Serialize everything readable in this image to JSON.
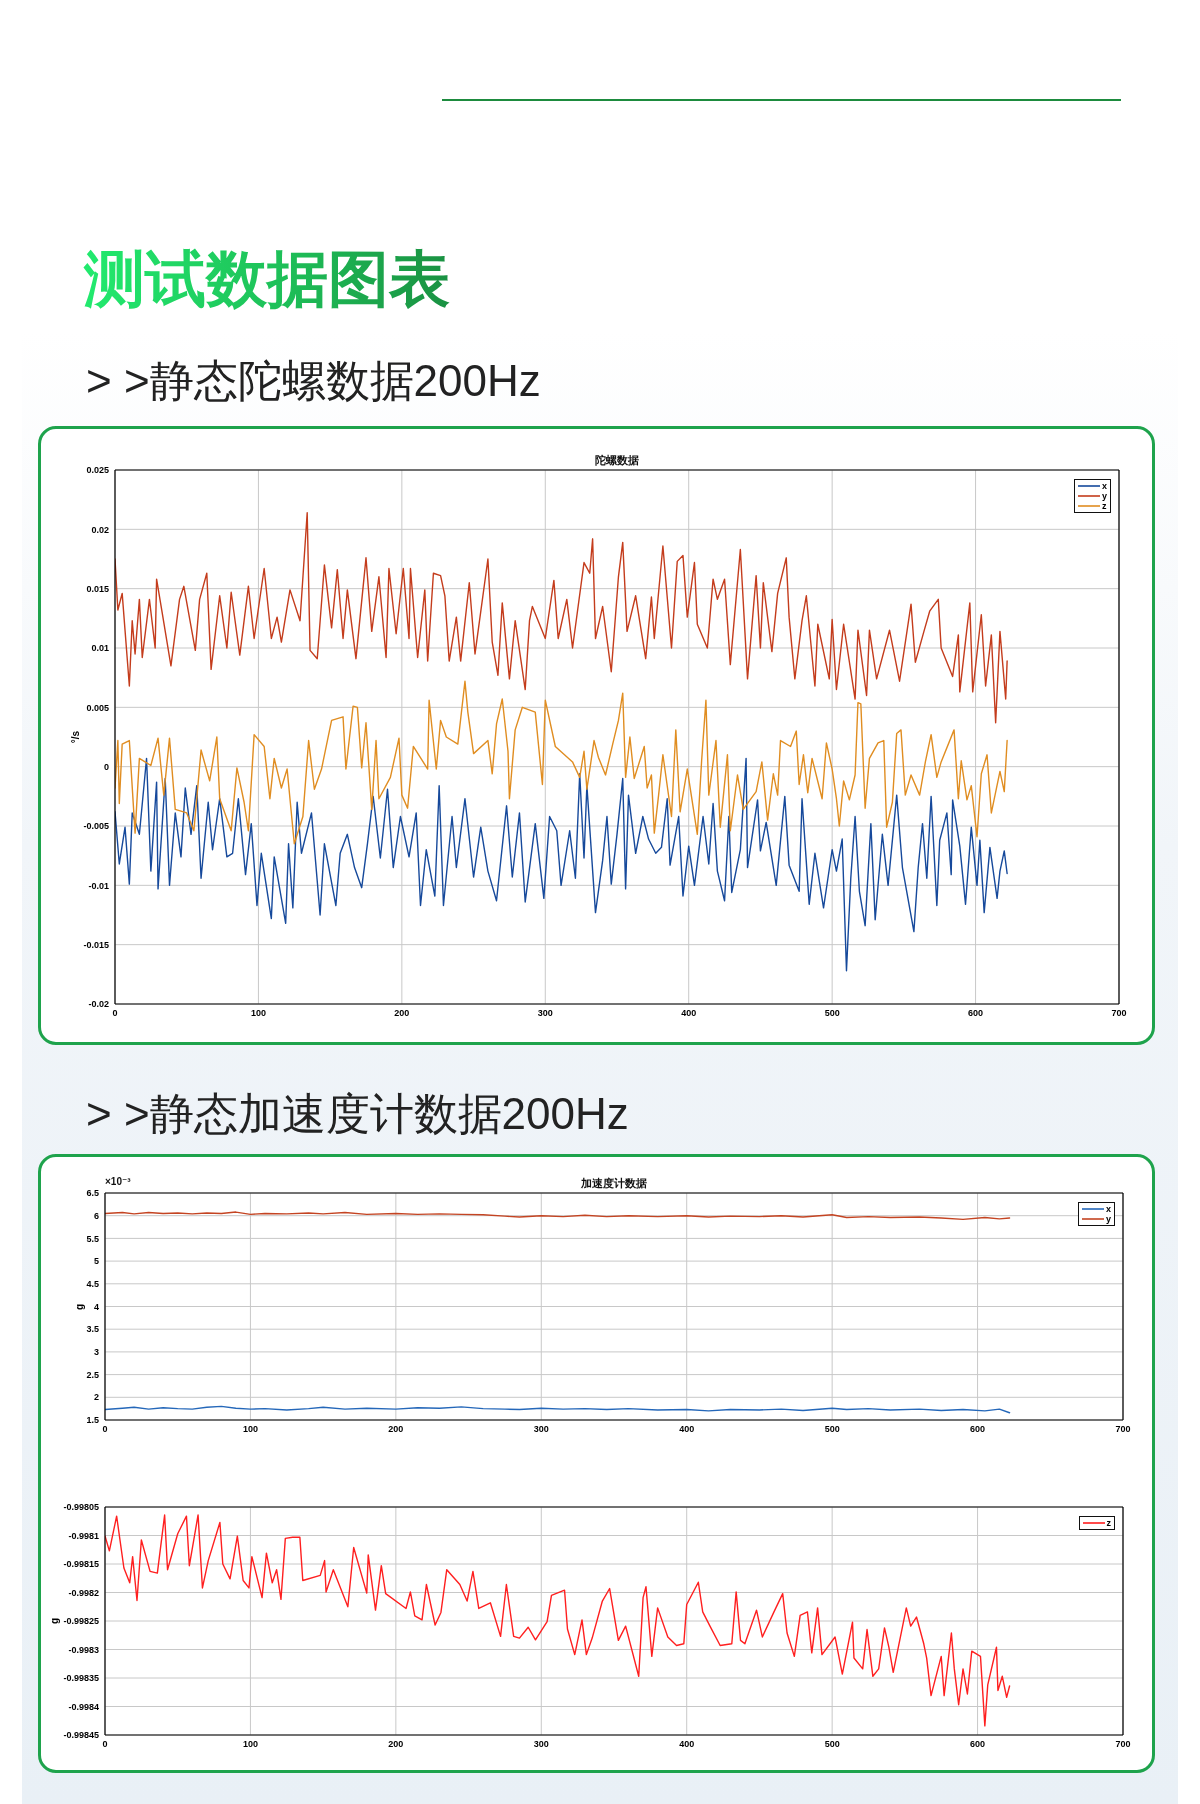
{
  "chart_data": [
    {
      "type": "line",
      "title": "陀螺数据",
      "subtitle": "> >静态陀螺数据200Hz",
      "annotations": [
        "测试数据图表"
      ],
      "ylabel": "°/s",
      "xlim": [
        0,
        700
      ],
      "xticks": [
        0,
        100,
        200,
        300,
        400,
        500,
        600,
        700
      ],
      "ylim": [
        -0.02,
        0.025
      ],
      "yticks": [
        -0.02,
        -0.015,
        -0.01,
        -0.005,
        0,
        0.005,
        0.01,
        0.015,
        0.02,
        0.025
      ],
      "grid": true,
      "legend": "top right",
      "series": [
        {
          "name": "x",
          "color": "#16499b",
          "x": [
            0,
            3,
            7,
            10,
            12,
            17,
            22,
            25,
            29,
            30,
            35,
            38,
            42,
            46,
            49,
            53,
            57,
            60,
            65,
            68,
            73,
            78,
            82,
            86,
            91,
            95,
            99,
            102,
            109,
            111,
            119,
            121,
            124,
            127,
            130,
            137,
            143,
            146,
            154,
            157,
            162,
            167,
            172,
            176,
            180,
            185,
            190,
            194,
            199,
            205,
            210,
            213,
            217,
            223,
            226,
            229,
            235,
            238,
            244,
            250,
            255,
            260,
            266,
            273,
            277,
            282,
            286,
            293,
            299,
            303,
            308,
            311,
            317,
            321,
            324,
            327,
            329,
            335,
            340,
            343,
            346,
            350,
            354,
            356,
            358,
            363,
            368,
            372,
            377,
            381,
            385,
            387,
            393,
            396,
            400,
            404,
            410,
            414,
            417,
            420,
            425,
            428,
            430,
            436,
            440,
            441,
            448,
            450,
            454,
            461,
            467,
            470,
            477,
            479,
            484,
            488,
            494,
            500,
            503,
            507,
            510,
            513,
            516,
            519,
            523,
            527,
            530,
            535,
            539,
            545,
            549,
            557,
            560,
            563,
            566,
            569,
            573,
            575,
            580,
            583,
            584,
            589,
            593,
            597,
            601,
            603,
            606,
            610,
            615,
            617,
            620,
            622
          ],
          "values": [
            -0.0038,
            -0.0082,
            -0.0051,
            -0.0099,
            -0.0039,
            -0.0057,
            0.0007,
            -0.0088,
            -0.0013,
            -0.0103,
            -0.001,
            -0.01,
            -0.0039,
            -0.0076,
            -0.0018,
            -0.0057,
            -0.0016,
            -0.0094,
            -0.003,
            -0.007,
            -0.0027,
            -0.0076,
            -0.0073,
            -0.0027,
            -0.0091,
            -0.0048,
            -0.0117,
            -0.0073,
            -0.0128,
            -0.0076,
            -0.0132,
            -0.0065,
            -0.0119,
            -0.003,
            -0.0073,
            -0.0039,
            -0.0125,
            -0.0065,
            -0.0117,
            -0.0073,
            -0.0057,
            -0.0085,
            -0.0102,
            -0.0065,
            -0.0025,
            -0.0077,
            -0.0019,
            -0.0085,
            -0.0042,
            -0.0076,
            -0.0039,
            -0.0117,
            -0.007,
            -0.0109,
            -0.0016,
            -0.0117,
            -0.0042,
            -0.0085,
            -0.0027,
            -0.0093,
            -0.0051,
            -0.0088,
            -0.0113,
            -0.0033,
            -0.0093,
            -0.0039,
            -0.0114,
            -0.0048,
            -0.0111,
            -0.0042,
            -0.0054,
            -0.01,
            -0.0054,
            -0.0094,
            -0.0006,
            -0.0077,
            -0.0016,
            -0.0123,
            -0.0079,
            -0.0042,
            -0.0099,
            -0.0057,
            -0.001,
            -0.0103,
            -0.0024,
            -0.0073,
            -0.0042,
            -0.0061,
            -0.0073,
            -0.0068,
            -0.0027,
            -0.0083,
            -0.0042,
            -0.0109,
            -0.0067,
            -0.01,
            -0.0042,
            -0.0082,
            -0.0031,
            -0.0088,
            -0.0113,
            -0.0042,
            -0.0106,
            -0.007,
            0.0007,
            -0.0085,
            -0.0028,
            -0.0071,
            -0.0047,
            -0.01,
            -0.0025,
            -0.0083,
            -0.0105,
            -0.0027,
            -0.0116,
            -0.0073,
            -0.0119,
            -0.007,
            -0.0088,
            -0.0061,
            -0.0172,
            -0.0094,
            -0.0042,
            -0.0105,
            -0.0134,
            -0.0048,
            -0.0129,
            -0.0057,
            -0.01,
            -0.0024,
            -0.0085,
            -0.0139,
            -0.0085,
            -0.0048,
            -0.0094,
            -0.0025,
            -0.0117,
            -0.0062,
            -0.0039,
            -0.0091,
            -0.0028,
            -0.0067,
            -0.0116,
            -0.0051,
            -0.01,
            -0.0062,
            -0.0123,
            -0.0068,
            -0.0111,
            -0.0088,
            -0.0071,
            -0.009
          ]
        },
        {
          "name": "y",
          "color": "#c43c1c",
          "x": [
            0,
            2,
            5,
            10,
            12,
            14,
            17,
            19,
            24,
            28,
            29,
            33,
            39,
            45,
            48,
            56,
            59,
            64,
            67,
            73,
            78,
            81,
            87,
            93,
            97,
            104,
            109,
            113,
            116,
            122,
            129,
            134,
            136,
            141,
            146,
            151,
            155,
            159,
            162,
            168,
            175,
            179,
            184,
            189,
            191,
            196,
            201,
            205,
            206,
            211,
            216,
            218,
            222,
            227,
            230,
            233,
            238,
            241,
            247,
            251,
            260,
            263,
            267,
            270,
            275,
            279,
            286,
            289,
            291,
            300,
            306,
            309,
            315,
            319,
            327,
            331,
            333,
            335,
            340,
            346,
            351,
            354,
            357,
            363,
            370,
            374,
            376,
            382,
            388,
            392,
            396,
            399,
            404,
            406,
            413,
            417,
            420,
            425,
            429,
            436,
            441,
            447,
            450,
            452,
            458,
            462,
            468,
            470,
            474,
            479,
            482,
            488,
            490,
            498,
            500,
            503,
            508,
            516,
            518,
            524,
            526,
            531,
            540,
            547,
            555,
            558,
            564,
            568,
            574,
            576,
            584,
            588,
            589,
            596,
            598,
            604,
            607,
            611,
            614,
            617,
            621,
            622
          ],
          "values": [
            0.0175,
            0.0132,
            0.0146,
            0.0068,
            0.0123,
            0.0095,
            0.0141,
            0.0092,
            0.0141,
            0.01,
            0.0158,
            0.0129,
            0.0085,
            0.0141,
            0.0152,
            0.0098,
            0.0141,
            0.0163,
            0.0082,
            0.0144,
            0.01,
            0.0147,
            0.0094,
            0.0152,
            0.0108,
            0.0167,
            0.0108,
            0.0126,
            0.0105,
            0.0149,
            0.0123,
            0.0214,
            0.0098,
            0.0091,
            0.017,
            0.0117,
            0.0166,
            0.0108,
            0.0149,
            0.0091,
            0.0176,
            0.0114,
            0.016,
            0.0092,
            0.0167,
            0.0112,
            0.0167,
            0.0108,
            0.0167,
            0.0092,
            0.0149,
            0.0089,
            0.0163,
            0.0161,
            0.0144,
            0.0089,
            0.0126,
            0.0089,
            0.0155,
            0.0095,
            0.0175,
            0.0105,
            0.0077,
            0.0138,
            0.0074,
            0.0123,
            0.0065,
            0.0123,
            0.0135,
            0.0108,
            0.0157,
            0.0108,
            0.0141,
            0.01,
            0.0172,
            0.0163,
            0.0192,
            0.0108,
            0.0135,
            0.008,
            0.016,
            0.0189,
            0.0114,
            0.0144,
            0.0091,
            0.0143,
            0.0108,
            0.0186,
            0.01,
            0.0173,
            0.0178,
            0.0126,
            0.0172,
            0.012,
            0.01,
            0.0158,
            0.0141,
            0.0158,
            0.0086,
            0.0183,
            0.0074,
            0.0161,
            0.01,
            0.0155,
            0.0097,
            0.0146,
            0.0176,
            0.0126,
            0.0074,
            0.0123,
            0.0144,
            0.0068,
            0.012,
            0.0074,
            0.0124,
            0.0065,
            0.012,
            0.0057,
            0.0115,
            0.006,
            0.0115,
            0.0074,
            0.0115,
            0.0072,
            0.0137,
            0.0088,
            0.0114,
            0.0131,
            0.0141,
            0.01,
            0.0076,
            0.0111,
            0.0063,
            0.0138,
            0.0063,
            0.0128,
            0.0068,
            0.0111,
            0.0037,
            0.0114,
            0.0057,
            0.0089
          ]
        },
        {
          "name": "z",
          "color": "#e08d21",
          "x": [
            0,
            2,
            3,
            5,
            10,
            14,
            17,
            25,
            30,
            34,
            38,
            42,
            50,
            55,
            60,
            66,
            71,
            73,
            81,
            85,
            90,
            93,
            97,
            104,
            108,
            111,
            116,
            120,
            125,
            131,
            135,
            139,
            144,
            151,
            159,
            161,
            166,
            169,
            172,
            175,
            179,
            182,
            184,
            192,
            198,
            200,
            204,
            208,
            218,
            219,
            224,
            227,
            231,
            239,
            244,
            246,
            250,
            260,
            263,
            266,
            270,
            274,
            275,
            279,
            284,
            293,
            298,
            300,
            307,
            319,
            324,
            327,
            329,
            334,
            337,
            342,
            347,
            351,
            354,
            356,
            359,
            362,
            369,
            371,
            374,
            376,
            379,
            382,
            388,
            391,
            394,
            399,
            406,
            409,
            412,
            414,
            419,
            422,
            427,
            429,
            434,
            438,
            447,
            451,
            455,
            459,
            462,
            464,
            471,
            475,
            477,
            480,
            483,
            486,
            493,
            496,
            500,
            503,
            505,
            508,
            512,
            516,
            518,
            520,
            523,
            526,
            532,
            536,
            538,
            542,
            545,
            548,
            551,
            555,
            561,
            565,
            569,
            573,
            576,
            585,
            588,
            590,
            594,
            597,
            601,
            604,
            608,
            611,
            617,
            620,
            622
          ],
          "values": [
            -0.0018,
            0.0022,
            -0.0031,
            0.0019,
            0.0022,
            -0.0056,
            0.0007,
            0.0001,
            0.0024,
            -0.0024,
            0.0024,
            -0.0036,
            -0.0039,
            -0.0054,
            0.0014,
            -0.0012,
            0.0025,
            -0.0027,
            -0.0054,
            -0.0001,
            -0.003,
            -0.0054,
            0.0027,
            0.0017,
            -0.0027,
            0.0007,
            -0.0018,
            -0.0002,
            -0.0065,
            -0.0042,
            0.0022,
            -0.0019,
            -0.0002,
            0.0039,
            0.0042,
            -0.0002,
            0.0051,
            0.005,
            -0.0001,
            0.0037,
            -0.0036,
            0.0022,
            -0.0027,
            -0.0009,
            0.0024,
            -0.0024,
            -0.0035,
            0.0017,
            -0.0002,
            0.0056,
            -0.0002,
            0.0039,
            0.0025,
            0.0019,
            0.0072,
            0.0046,
            0.0011,
            0.0022,
            -0.0006,
            0.0036,
            0.0057,
            0.0013,
            -0.0027,
            0.0031,
            0.005,
            0.0046,
            -0.0015,
            0.0056,
            0.0017,
            0.0004,
            -0.0009,
            0.0013,
            -0.0019,
            0.0022,
            0.0008,
            -0.0007,
            0.0019,
            0.0039,
            0.0062,
            -0.0009,
            0.0025,
            -0.001,
            0.0017,
            -0.0018,
            -0.0007,
            -0.0056,
            -0.0024,
            0.001,
            -0.0042,
            0.0031,
            -0.0038,
            -0.0002,
            -0.0057,
            0.0005,
            0.0056,
            -0.0024,
            0.0022,
            -0.0051,
            0.001,
            -0.0054,
            -0.0007,
            -0.0036,
            -0.0021,
            0.0004,
            -0.0045,
            -0.0006,
            -0.0024,
            0.0022,
            0.0017,
            0.003,
            -0.0015,
            0.001,
            -0.0022,
            0.0007,
            -0.0027,
            0.002,
            -0.0002,
            -0.0027,
            -0.005,
            -0.0012,
            -0.0028,
            -0.0007,
            0.0054,
            0.0053,
            -0.0035,
            0.0007,
            0.002,
            0.0022,
            -0.0051,
            -0.003,
            0.0028,
            0.0031,
            -0.0024,
            -0.0007,
            -0.0024,
            0.0004,
            0.0027,
            -0.0009,
            0.0004,
            0.0031,
            -0.0027,
            0.0005,
            -0.0028,
            -0.0016,
            -0.0059,
            -0.0006,
            0.001,
            -0.0039,
            -0.0004,
            -0.0021,
            0.0022
          ]
        }
      ]
    },
    {
      "type": "line",
      "title": "加速度计数据",
      "subtitle": "> >静态加速度计数据200Hz",
      "annotations": [
        "×10⁻³"
      ],
      "ylabel": "g",
      "xlim": [
        0,
        700
      ],
      "xticks": [
        0,
        100,
        200,
        300,
        400,
        500,
        600,
        700
      ],
      "ylim": [
        1.5,
        6.5
      ],
      "yticks": [
        1.5,
        2,
        2.5,
        3,
        3.5,
        4,
        4.5,
        5,
        5.5,
        6,
        6.5
      ],
      "grid": true,
      "legend": "top right",
      "series": [
        {
          "name": "x",
          "color": "#2467b9",
          "x": [
            0,
            12,
            20,
            30,
            40,
            50,
            60,
            70,
            80,
            90,
            100,
            110,
            125,
            140,
            150,
            165,
            180,
            200,
            215,
            230,
            245,
            260,
            275,
            285,
            300,
            315,
            330,
            345,
            360,
            380,
            400,
            415,
            430,
            450,
            465,
            480,
            500,
            510,
            525,
            540,
            560,
            575,
            590,
            605,
            615,
            622
          ],
          "values": [
            1.73,
            1.76,
            1.78,
            1.74,
            1.77,
            1.75,
            1.74,
            1.78,
            1.8,
            1.76,
            1.74,
            1.75,
            1.72,
            1.75,
            1.78,
            1.74,
            1.76,
            1.74,
            1.77,
            1.76,
            1.79,
            1.75,
            1.74,
            1.73,
            1.76,
            1.74,
            1.75,
            1.73,
            1.75,
            1.72,
            1.73,
            1.7,
            1.73,
            1.72,
            1.74,
            1.71,
            1.76,
            1.73,
            1.75,
            1.72,
            1.74,
            1.71,
            1.73,
            1.7,
            1.74,
            1.66
          ]
        },
        {
          "name": "y",
          "color": "#c44422",
          "x": [
            0,
            12,
            20,
            30,
            40,
            50,
            60,
            70,
            80,
            90,
            100,
            110,
            125,
            140,
            150,
            165,
            180,
            200,
            215,
            230,
            245,
            260,
            275,
            285,
            300,
            315,
            330,
            345,
            360,
            380,
            400,
            415,
            430,
            450,
            465,
            480,
            500,
            510,
            525,
            540,
            560,
            575,
            590,
            605,
            615,
            622
          ],
          "values": [
            6.05,
            6.07,
            6.04,
            6.07,
            6.05,
            6.06,
            6.04,
            6.06,
            6.05,
            6.08,
            6.03,
            6.05,
            6.04,
            6.06,
            6.04,
            6.07,
            6.03,
            6.05,
            6.03,
            6.04,
            6.03,
            6.02,
            5.99,
            5.97,
            6,
            5.98,
            6.01,
            5.98,
            6,
            5.98,
            6,
            5.97,
            5.99,
            5.98,
            6,
            5.97,
            6.02,
            5.96,
            5.98,
            5.96,
            5.97,
            5.95,
            5.92,
            5.96,
            5.93,
            5.95
          ]
        }
      ]
    },
    {
      "type": "line",
      "ylabel": "g",
      "xlim": [
        0,
        700
      ],
      "xticks": [
        0,
        100,
        200,
        300,
        400,
        500,
        600,
        700
      ],
      "ylim": [
        -0.99845,
        -0.99805
      ],
      "yticks": [
        -0.99845,
        -0.9984,
        -0.99835,
        -0.9983,
        -0.99825,
        -0.9982,
        -0.99815,
        -0.9981,
        -0.99805
      ],
      "grid": true,
      "legend": "top right",
      "series": [
        {
          "name": "z",
          "color": "#ff1f1f",
          "x": [
            0,
            3,
            8,
            13,
            17,
            19,
            22,
            25,
            31,
            36,
            41,
            43,
            50,
            56,
            58,
            64,
            67,
            71,
            79,
            81,
            86,
            91,
            95,
            99,
            101,
            108,
            111,
            115,
            118,
            121,
            124,
            129,
            134,
            136,
            148,
            151,
            152,
            157,
            167,
            171,
            180,
            181,
            186,
            190,
            193,
            207,
            210,
            213,
            218,
            221,
            227,
            231,
            235,
            244,
            249,
            253,
            257,
            265,
            272,
            276,
            281,
            285,
            291,
            296,
            304,
            307,
            316,
            318,
            323,
            328,
            331,
            335,
            342,
            347,
            353,
            358,
            367,
            370,
            372,
            376,
            380,
            387,
            393,
            398,
            400,
            408,
            411,
            416,
            423,
            431,
            434,
            437,
            440,
            448,
            452,
            460,
            466,
            469,
            474,
            478,
            483,
            486,
            490,
            493,
            502,
            507,
            514,
            515,
            521,
            524,
            528,
            532,
            536,
            539,
            542,
            551,
            554,
            558,
            563,
            565,
            568,
            575,
            577,
            582,
            584,
            587,
            590,
            593,
            596,
            602,
            605,
            607,
            613,
            614,
            617,
            620,
            622
          ],
          "values": [
            -0.998101,
            -0.998127,
            -0.998066,
            -0.998157,
            -0.998183,
            -0.998137,
            -0.998214,
            -0.998108,
            -0.998163,
            -0.998166,
            -0.998064,
            -0.99816,
            -0.998097,
            -0.998066,
            -0.998153,
            -0.998064,
            -0.998192,
            -0.998144,
            -0.998077,
            -0.99815,
            -0.998176,
            -0.998101,
            -0.998179,
            -0.998192,
            -0.998137,
            -0.998209,
            -0.998131,
            -0.998183,
            -0.99816,
            -0.998212,
            -0.998105,
            -0.998103,
            -0.998103,
            -0.998179,
            -0.99817,
            -0.998144,
            -0.998199,
            -0.99816,
            -0.998225,
            -0.998121,
            -0.998201,
            -0.998134,
            -0.998231,
            -0.998153,
            -0.998202,
            -0.998228,
            -0.998199,
            -0.998241,
            -0.998248,
            -0.998186,
            -0.998257,
            -0.998235,
            -0.99816,
            -0.998186,
            -0.998215,
            -0.998163,
            -0.998228,
            -0.998218,
            -0.998277,
            -0.998186,
            -0.998277,
            -0.99828,
            -0.998261,
            -0.998283,
            -0.998251,
            -0.998205,
            -0.998196,
            -0.998264,
            -0.998309,
            -0.998248,
            -0.998309,
            -0.99828,
            -0.998215,
            -0.998193,
            -0.998284,
            -0.998259,
            -0.998347,
            -0.998209,
            -0.99819,
            -0.998312,
            -0.998227,
            -0.998278,
            -0.998293,
            -0.99829,
            -0.998221,
            -0.998182,
            -0.998234,
            -0.998259,
            -0.998293,
            -0.99829,
            -0.998199,
            -0.998284,
            -0.99829,
            -0.998231,
            -0.998278,
            -0.998234,
            -0.998202,
            -0.998271,
            -0.998312,
            -0.99824,
            -0.998234,
            -0.998306,
            -0.998227,
            -0.998309,
            -0.998278,
            -0.998343,
            -0.998252,
            -0.998315,
            -0.998334,
            -0.998265,
            -0.998347,
            -0.998334,
            -0.998262,
            -0.998296,
            -0.99834,
            -0.998227,
            -0.998259,
            -0.998243,
            -0.99829,
            -0.998315,
            -0.998381,
            -0.998312,
            -0.998381,
            -0.998271,
            -0.998334,
            -0.998397,
            -0.998334,
            -0.998378,
            -0.998303,
            -0.998312,
            -0.998434,
            -0.998362,
            -0.998296,
            -0.998372,
            -0.998347,
            -0.998384,
            -0.998364
          ]
        }
      ]
    }
  ]
}
